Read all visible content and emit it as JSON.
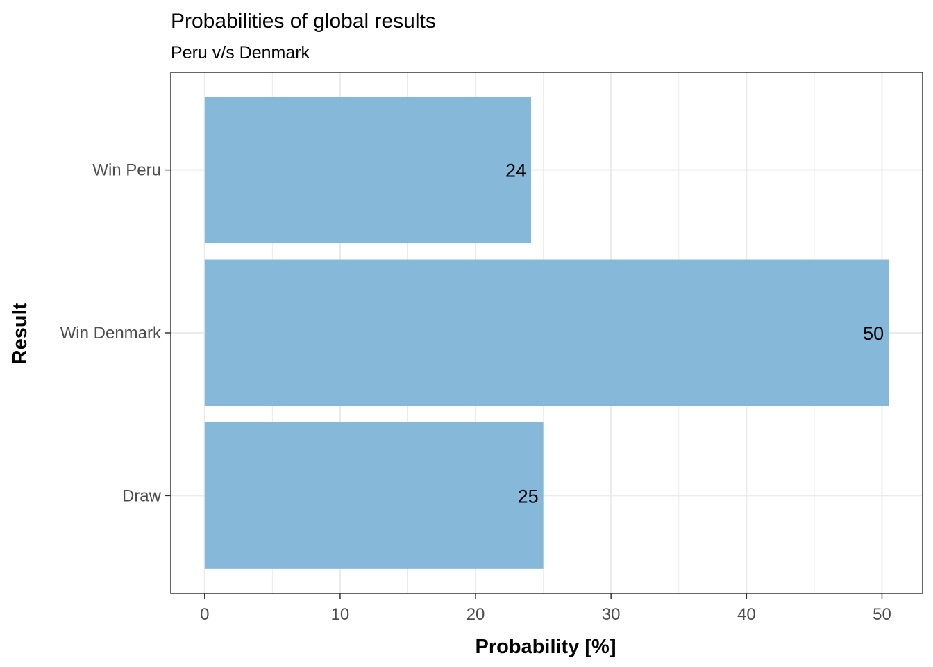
{
  "chart_data": {
    "type": "bar",
    "orientation": "horizontal",
    "title": "Probabilities of global results",
    "subtitle": "Peru v/s Denmark",
    "xlabel": "Probability [%]",
    "ylabel": "Result",
    "categories": [
      "Win Peru",
      "Win Denmark",
      "Draw"
    ],
    "values": [
      24.1,
      50.5,
      25.0
    ],
    "data_labels": [
      "24",
      "50",
      "25"
    ],
    "xlim": [
      -2.5,
      53.0
    ],
    "xticks": [
      0,
      10,
      20,
      30,
      40,
      50
    ],
    "xtick_labels": [
      "0",
      "10",
      "20",
      "30",
      "40",
      "50"
    ],
    "grid": true,
    "bar_color": "#86b9d9",
    "grid_color": "#ebebeb",
    "panel_border_color": "#333333"
  }
}
